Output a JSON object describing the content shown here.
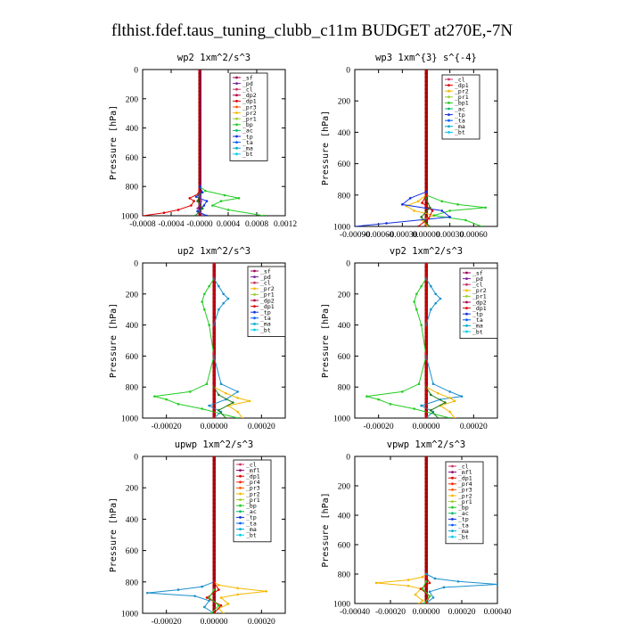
{
  "figure": {
    "title": "flthist.fdef.taus_tuning_clubb_c11m  BUDGET at270E,-7N"
  },
  "chart_data": [
    {
      "type": "line",
      "title": "wp2  1xm^2/s^3",
      "ylabel": "Pressure [hPa]",
      "xlim": [
        -0.0008,
        0.0012
      ],
      "ylim": [
        1000,
        0
      ],
      "xticks": [
        -0.0008,
        -0.0004,
        0.0,
        0.0004,
        0.0008,
        0.0012
      ],
      "xtick_labels": [
        "-0.0008",
        "-0.0004",
        "-0.0000",
        "0.0004",
        "0.0008",
        "0.0012"
      ],
      "yticks": [
        0,
        200,
        400,
        600,
        800,
        1000
      ],
      "legend": [
        "_sf",
        "_pd",
        "_cl",
        "_dp2",
        "_dp1",
        "_pr3",
        "_pr2",
        "_pr1",
        "_bp",
        "_ac",
        "_tp",
        "_ta",
        "_ma",
        "_bt"
      ],
      "series": [
        {
          "name": "_dp1",
          "color": "#e00000",
          "y": [
            800,
            850,
            880,
            900,
            930,
            960,
            980,
            1000
          ],
          "x": [
            0,
            -2e-05,
            -0.00014,
            -8e-05,
            -0.00012,
            -0.0003,
            -0.0005,
            -0.0008
          ]
        },
        {
          "name": "_ac",
          "color": "#22cc22",
          "y": [
            800,
            830,
            860,
            880,
            900,
            930,
            960,
            1000
          ],
          "x": [
            0,
            8e-05,
            0.00035,
            0.00055,
            0.0003,
            0.00018,
            0.0004,
            0.0009
          ]
        },
        {
          "name": "_tp",
          "color": "#1030e0",
          "y": [
            800,
            840,
            870,
            900,
            930,
            970,
            1000
          ],
          "x": [
            0,
            4e-05,
            -5e-05,
            0.0001,
            6e-05,
            -3e-05,
            0.0001
          ]
        },
        {
          "name": "_bp",
          "color": "#8e44ad",
          "y": [
            850,
            900,
            950,
            1000
          ],
          "x": [
            0,
            2e-05,
            -3e-05,
            5e-05
          ]
        },
        {
          "name": "_pr1",
          "color": "#1b7a1b",
          "y": [
            850,
            900,
            950,
            1000
          ],
          "x": [
            0,
            -3e-05,
            4e-05,
            -6e-05
          ]
        }
      ]
    },
    {
      "type": "line",
      "title": "wp3  1xm^{3} s^{-4}",
      "ylabel": "Pressure [hPa]",
      "xlim": [
        -0.0009,
        0.0009
      ],
      "ylim": [
        1000,
        0
      ],
      "xticks": [
        -0.0009,
        -0.0006,
        -0.0003,
        0.0,
        0.0003,
        0.0006
      ],
      "xtick_labels": [
        "-0.00090",
        "-0.00060",
        "-0.00030",
        "0.00000",
        "0.00030",
        "0.00060"
      ],
      "yticks": [
        0,
        200,
        400,
        600,
        800,
        1000
      ],
      "legend": [
        "_cl",
        "_dp1",
        "_pr2",
        "_pr1",
        "_bp1",
        "_ac",
        "_tp",
        "_ta",
        "_ma",
        "_bt"
      ],
      "series": [
        {
          "name": "_pr2",
          "color": "#f5b800",
          "y": [
            800,
            840,
            870,
            900,
            930,
            960,
            1000
          ],
          "x": [
            0,
            -0.0001,
            -0.00025,
            -0.00015,
            0.0001,
            -5e-05,
            2e-05
          ]
        },
        {
          "name": "_ac",
          "color": "#22cc22",
          "y": [
            800,
            840,
            860,
            880,
            900,
            930,
            960,
            1000
          ],
          "x": [
            0,
            0.0002,
            0.0004,
            0.00075,
            0.0003,
            0.0001,
            0.0005,
            0.0007
          ]
        },
        {
          "name": "_tp",
          "color": "#1030e0",
          "y": [
            780,
            820,
            860,
            900,
            940,
            980,
            1000
          ],
          "x": [
            0,
            -0.0002,
            -0.0003,
            0.0002,
            0.0003,
            -0.0005,
            -0.0009
          ]
        },
        {
          "name": "_dp1",
          "color": "#e00000",
          "y": [
            800,
            850,
            900,
            950,
            1000
          ],
          "x": [
            0,
            -5e-05,
            8e-05,
            3e-05,
            -0.0001
          ]
        },
        {
          "name": "_pr1",
          "color": "#1b7a1b",
          "y": [
            820,
            880,
            940,
            1000
          ],
          "x": [
            0,
            5e-05,
            -6e-05,
            4e-05
          ]
        }
      ]
    },
    {
      "type": "line",
      "title": "up2  1xm^2/s^3",
      "ylabel": "Pressure [hPa]",
      "xlim": [
        -0.0003,
        0.0003
      ],
      "ylim": [
        1000,
        0
      ],
      "xticks": [
        -0.0002,
        0.0,
        0.0002
      ],
      "xtick_labels": [
        "-0.00020",
        "0.00000",
        "0.00020"
      ],
      "yticks": [
        0,
        200,
        400,
        600,
        800,
        1000
      ],
      "legend": [
        "_sf",
        "_pd",
        "_cl",
        "_pr2",
        "_pr1",
        "_dp2",
        "_dp1",
        "_tp",
        "_ta",
        "_ma",
        "_bt"
      ],
      "series": [
        {
          "name": "_dp1",
          "color": "#22cc22",
          "y": [
            0,
            100,
            150,
            200,
            250,
            300,
            400,
            600,
            780,
            830,
            860,
            880,
            910,
            940,
            1000
          ],
          "x": [
            0,
            0,
            -2e-05,
            -4e-05,
            -5e-05,
            -4e-05,
            -2e-05,
            0,
            -3e-05,
            -0.0001,
            -0.00025,
            -0.0002,
            -0.00015,
            -5e-05,
            0.0001
          ]
        },
        {
          "name": "_tp",
          "color": "#1a8fcc",
          "y": [
            0,
            100,
            150,
            200,
            230,
            260,
            300,
            400,
            600,
            780,
            830,
            880,
            920,
            960,
            1000
          ],
          "x": [
            0,
            0,
            2e-05,
            4e-05,
            6e-05,
            4e-05,
            2e-05,
            0,
            0,
            3e-05,
            0.0001,
            5e-05,
            -2e-05,
            3e-05,
            0
          ]
        },
        {
          "name": "_pr2",
          "color": "#f5b800",
          "y": [
            800,
            840,
            870,
            890,
            920,
            960,
            1000
          ],
          "x": [
            0,
            5e-05,
            0.0001,
            0.00015,
            6e-05,
            0.0001,
            0.00012
          ]
        },
        {
          "name": "_pr1",
          "color": "#1b7a1b",
          "y": [
            800,
            850,
            900,
            950,
            1000
          ],
          "x": [
            0,
            2e-05,
            8e-05,
            2e-05,
            5e-05
          ]
        },
        {
          "name": "_dp2",
          "color": "#e00000",
          "y": [
            0,
            1000
          ],
          "x": [
            0,
            0
          ]
        }
      ]
    },
    {
      "type": "line",
      "title": "vp2  1xm^2/s^3",
      "ylabel": "Pressure [hPa]",
      "xlim": [
        -0.0003,
        0.0003
      ],
      "ylim": [
        1000,
        0
      ],
      "xticks": [
        -0.0002,
        0.0,
        0.0002
      ],
      "xtick_labels": [
        "-0.00020",
        "0.00000",
        "0.00020"
      ],
      "yticks": [
        0,
        200,
        400,
        600,
        800,
        1000
      ],
      "legend": [
        "_sf",
        "_pd",
        "_cl",
        "_pr2",
        "_pr1",
        "_dp2",
        "_dp1",
        "_tp",
        "_ta",
        "_ma",
        "_bt"
      ],
      "series": [
        {
          "name": "_dp1",
          "color": "#22cc22",
          "y": [
            0,
            100,
            150,
            200,
            250,
            300,
            400,
            600,
            780,
            830,
            860,
            880,
            910,
            940,
            1000
          ],
          "x": [
            0,
            0,
            -2e-05,
            -4e-05,
            -5e-05,
            -4e-05,
            -2e-05,
            0,
            -3e-05,
            -0.0001,
            -0.00025,
            -0.0002,
            -0.00015,
            -5e-05,
            0.0001
          ]
        },
        {
          "name": "_tp",
          "color": "#1a8fcc",
          "y": [
            0,
            100,
            150,
            200,
            230,
            260,
            300,
            400,
            600,
            780,
            830,
            860,
            880,
            920,
            960,
            1000
          ],
          "x": [
            0,
            0,
            2e-05,
            4e-05,
            6e-05,
            4e-05,
            2e-05,
            0,
            0,
            3e-05,
            0.0001,
            0.00015,
            6e-05,
            -2e-05,
            3e-05,
            0
          ]
        },
        {
          "name": "_pr2",
          "color": "#f5b800",
          "y": [
            800,
            840,
            870,
            890,
            920,
            960,
            1000
          ],
          "x": [
            0,
            5e-05,
            0.0001,
            0.00012,
            6e-05,
            0.0001,
            0.00012
          ]
        },
        {
          "name": "_pr1",
          "color": "#1b7a1b",
          "y": [
            800,
            850,
            900,
            950,
            1000
          ],
          "x": [
            0,
            2e-05,
            8e-05,
            2e-05,
            5e-05
          ]
        },
        {
          "name": "_dp2",
          "color": "#e00000",
          "y": [
            0,
            1000
          ],
          "x": [
            0,
            0
          ]
        }
      ]
    },
    {
      "type": "line",
      "title": "upwp  1xm^2/s^3",
      "ylabel": "Pressure [hPa]",
      "xlim": [
        -0.0003,
        0.0003
      ],
      "ylim": [
        1000,
        0
      ],
      "xticks": [
        -0.0002,
        0.0,
        0.0002
      ],
      "xtick_labels": [
        "-0.00020",
        "0.00000",
        "0.00020"
      ],
      "yticks": [
        0,
        200,
        400,
        600,
        800,
        1000
      ],
      "legend": [
        "_cl",
        "_mfl",
        "_dp1",
        "_pr4",
        "_pr3",
        "_pr2",
        "_pr1",
        "_bp",
        "_ac",
        "_tp",
        "_ta",
        "_ma",
        "_bt"
      ],
      "series": [
        {
          "name": "_pr2",
          "color": "#f5b800",
          "y": [
            800,
            820,
            840,
            860,
            880,
            900,
            940,
            970,
            1000
          ],
          "x": [
            0,
            2e-05,
            0.0001,
            0.00022,
            0.0001,
            3e-05,
            6e-05,
            2e-05,
            4e-05
          ]
        },
        {
          "name": "_tp",
          "color": "#1a8fcc",
          "y": [
            800,
            830,
            850,
            870,
            890,
            920,
            960,
            1000
          ],
          "x": [
            0,
            -5e-05,
            -0.00015,
            -0.00028,
            -8e-05,
            -2e-05,
            -4e-05,
            0
          ]
        },
        {
          "name": "_dp1",
          "color": "#e00000",
          "y": [
            800,
            850,
            900,
            950,
            1000
          ],
          "x": [
            0,
            2e-05,
            -3e-05,
            3e-05,
            0
          ]
        },
        {
          "name": "_ac",
          "color": "#22cc22",
          "y": [
            850,
            900,
            950,
            1000
          ],
          "x": [
            0,
            -2e-05,
            2e-05,
            -1e-05
          ]
        }
      ]
    },
    {
      "type": "line",
      "title": "vpwp  1xm^2/s^3",
      "ylabel": "Pressure [hPa]",
      "xlim": [
        -0.0004,
        0.0004
      ],
      "ylim": [
        1000,
        0
      ],
      "xticks": [
        -0.0004,
        -0.0002,
        0.0,
        0.0002,
        0.0004
      ],
      "xtick_labels": [
        "-0.00040",
        "-0.00020",
        "0.00000",
        "0.00020",
        "0.00040"
      ],
      "yticks": [
        0,
        200,
        400,
        600,
        800,
        1000
      ],
      "legend": [
        "_cl",
        "_mfl",
        "_dp1",
        "_pr4",
        "_pr3",
        "_pr2",
        "_pr1",
        "_bp",
        "_ac",
        "_tp",
        "_ta",
        "_ma",
        "_bt"
      ],
      "series": [
        {
          "name": "_pr2",
          "color": "#f5b800",
          "y": [
            800,
            820,
            840,
            860,
            880,
            900,
            940,
            980,
            1000
          ],
          "x": [
            0,
            -2e-05,
            -0.0001,
            -0.00028,
            -0.0001,
            -3e-05,
            -6e-05,
            -2e-05,
            -4e-05
          ]
        },
        {
          "name": "_tp",
          "color": "#1a8fcc",
          "y": [
            800,
            830,
            850,
            870,
            890,
            920,
            960,
            1000
          ],
          "x": [
            0,
            5e-05,
            0.00018,
            0.0004,
            0.0001,
            2e-05,
            4e-05,
            0
          ]
        },
        {
          "name": "_dp1",
          "color": "#e00000",
          "y": [
            820,
            860,
            900,
            950,
            1000
          ],
          "x": [
            0,
            2e-05,
            -3e-05,
            2e-05,
            0
          ]
        },
        {
          "name": "_ac",
          "color": "#22cc22",
          "y": [
            850,
            900,
            950,
            1000
          ],
          "x": [
            0,
            -2e-05,
            2e-05,
            -1e-05
          ]
        }
      ]
    }
  ]
}
